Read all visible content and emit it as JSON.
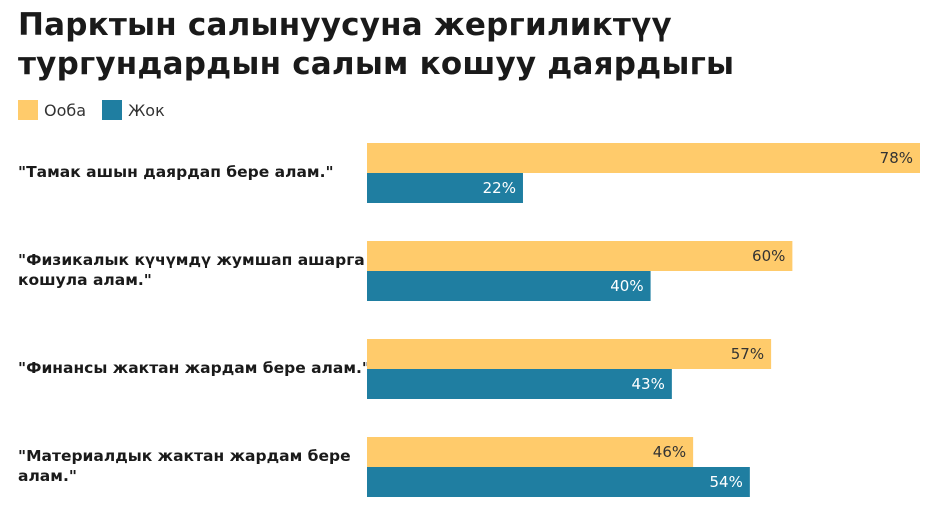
{
  "chart_data": {
    "type": "bar",
    "orientation": "horizontal",
    "title": "Парктын салынуусуна жергиликтүү тургундардын салым кошуу даярдыгы",
    "categories": [
      "\"Тамак ашын даярдап бере алам.\"",
      "\"Физикалык күчүмдү жумшап ашарга кошула алам.\"",
      "\"Финансы жактан жардам бере алам.\"",
      "\"Материалдык жактан жардам бере алам.\""
    ],
    "category_lines": [
      [
        "\"Тамак ашын даярдап бере алам.\""
      ],
      [
        "\"Физикалык күчүмдү жумшап ашарга",
        "кошула алам.\""
      ],
      [
        "\"Финансы жактан жардам бере алам.\""
      ],
      [
        "\"Материалдык жактан жардам бере",
        "алам.\""
      ]
    ],
    "series": [
      {
        "name": "Ооба",
        "color": "#FFCB6B",
        "label_color": "#333333",
        "values": [
          78,
          60,
          57,
          46
        ],
        "labels": [
          "78%",
          "60%",
          "57%",
          "46%"
        ]
      },
      {
        "name": "Жок",
        "color": "#1F7EA1",
        "label_color": "#ffffff",
        "values": [
          22,
          40,
          43,
          54
        ],
        "labels": [
          "22%",
          "40%",
          "43%",
          "54%"
        ]
      }
    ],
    "xlim": [
      0,
      78
    ],
    "legend_position": "top-left",
    "grid": false
  }
}
